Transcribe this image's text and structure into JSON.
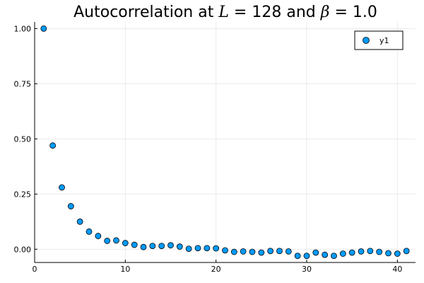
{
  "chart_data": {
    "type": "scatter",
    "title": "Autocorrelation at L = 128 and β = 1.0",
    "title_parts": {
      "prefix": "Autocorrelation at ",
      "L_symbol": "L",
      "middle": " = 128 and ",
      "beta_symbol": "β",
      "suffix": " = 1.0"
    },
    "xlabel": "",
    "ylabel": "",
    "xlim": [
      0,
      42
    ],
    "ylim": [
      -0.06,
      1.03
    ],
    "x_ticks": [
      0,
      10,
      20,
      30,
      40
    ],
    "x_tick_labels": [
      "0",
      "10",
      "20",
      "30",
      "40"
    ],
    "y_ticks": [
      0.0,
      0.25,
      0.5,
      0.75,
      1.0
    ],
    "y_tick_labels": [
      "0.00",
      "0.25",
      "0.50",
      "0.75",
      "1.00"
    ],
    "grid": true,
    "legend_position": "top-right",
    "marker_color": "#009AFA",
    "series": [
      {
        "name": "y1",
        "x": [
          1,
          2,
          3,
          4,
          5,
          6,
          7,
          8,
          9,
          10,
          11,
          12,
          13,
          14,
          15,
          16,
          17,
          18,
          19,
          20,
          21,
          22,
          23,
          24,
          25,
          26,
          27,
          28,
          29,
          30,
          31,
          32,
          33,
          34,
          35,
          36,
          37,
          38,
          39,
          40,
          41
        ],
        "y": [
          1.0,
          0.47,
          0.28,
          0.195,
          0.125,
          0.08,
          0.06,
          0.038,
          0.04,
          0.028,
          0.02,
          0.01,
          0.015,
          0.015,
          0.018,
          0.012,
          0.002,
          0.005,
          0.005,
          0.004,
          -0.005,
          -0.012,
          -0.01,
          -0.012,
          -0.015,
          -0.008,
          -0.008,
          -0.01,
          -0.03,
          -0.03,
          -0.015,
          -0.025,
          -0.03,
          -0.02,
          -0.015,
          -0.01,
          -0.008,
          -0.012,
          -0.018,
          -0.02,
          -0.008
        ]
      }
    ]
  }
}
